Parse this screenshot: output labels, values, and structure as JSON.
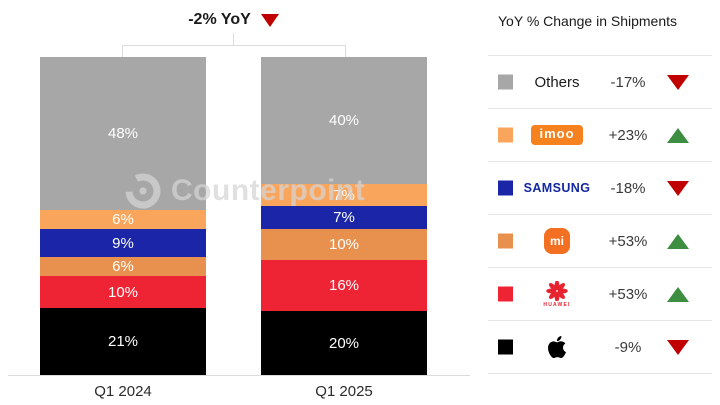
{
  "title": {
    "yoy_label": "-2% YoY",
    "direction": "down"
  },
  "watermark": {
    "text": "Counterpoint"
  },
  "chart_data": {
    "type": "bar",
    "subtype": "100%-stacked-column",
    "title": "-2% YoY",
    "categories": [
      "Q1 2024",
      "Q1 2025"
    ],
    "unit": "%",
    "ylim": [
      0,
      100
    ],
    "grid": false,
    "legend_position": "right",
    "stack_order_top_to_bottom": [
      "Others",
      "imoo",
      "Samsung",
      "Xiaomi",
      "Huawei",
      "Apple"
    ],
    "series": [
      {
        "name": "Others",
        "color": "#a7a7a7",
        "values": [
          48,
          40
        ]
      },
      {
        "name": "imoo",
        "color": "#faa55c",
        "values": [
          6,
          7
        ]
      },
      {
        "name": "Samsung",
        "color": "#1b25a8",
        "values": [
          9,
          7
        ]
      },
      {
        "name": "Xiaomi",
        "color": "#e8914e",
        "values": [
          6,
          10
        ]
      },
      {
        "name": "Huawei",
        "color": "#ee2435",
        "values": [
          10,
          16
        ]
      },
      {
        "name": "Apple",
        "color": "#000000",
        "values": [
          21,
          20
        ]
      }
    ]
  },
  "legend": {
    "title": "YoY % Change in Shipments",
    "rows": [
      {
        "brand": "Others",
        "logo": "others",
        "logo_text": "Others",
        "value": "-17%",
        "direction": "down",
        "swatch": "#a7a7a7"
      },
      {
        "brand": "imoo",
        "logo": "imoo",
        "logo_text": "imoo",
        "value": "+23%",
        "direction": "up",
        "swatch": "#faa55c"
      },
      {
        "brand": "Samsung",
        "logo": "samsung",
        "logo_text": "SAMSUNG",
        "value": "-18%",
        "direction": "down",
        "swatch": "#1b25a8"
      },
      {
        "brand": "Xiaomi",
        "logo": "xiaomi",
        "logo_text": "mi",
        "value": "+53%",
        "direction": "up",
        "swatch": "#e8914e"
      },
      {
        "brand": "Huawei",
        "logo": "huawei",
        "logo_text": "HUAWEI",
        "value": "+53%",
        "direction": "up",
        "swatch": "#ee2435"
      },
      {
        "brand": "Apple",
        "logo": "apple",
        "logo_text": "",
        "value": "-9%",
        "direction": "down",
        "swatch": "#000000"
      }
    ]
  },
  "colors": {
    "up": "#3e8e41",
    "down": "#c00000"
  }
}
